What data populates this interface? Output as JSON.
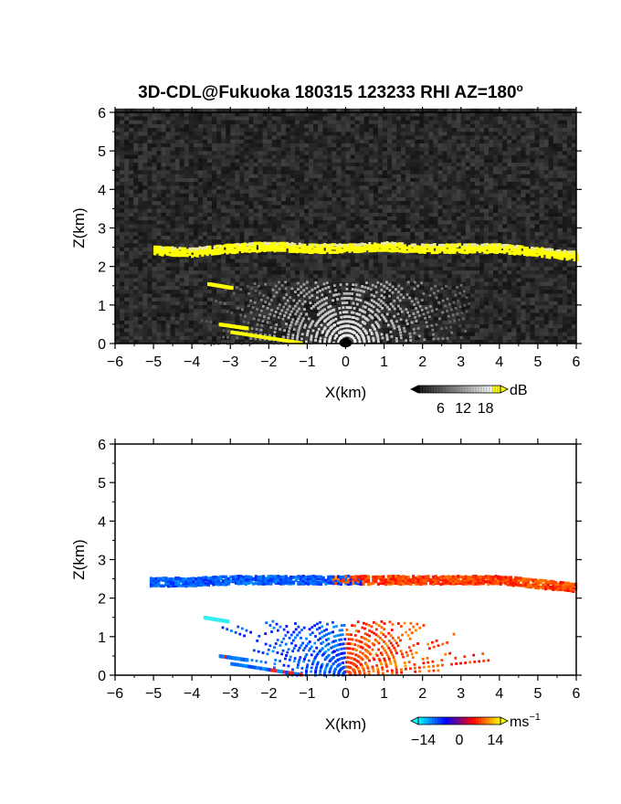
{
  "title": "3D-CDL@Fukuoka 180315 123233 RHI AZ=180",
  "title_degree": "o",
  "chart_data": [
    {
      "type": "heatmap",
      "quantity": "backscatter intensity",
      "xlabel": "X(km)",
      "ylabel": "Z(km)",
      "xlim": [
        -6,
        6
      ],
      "ylim": [
        0,
        6
      ],
      "xticks": [
        "-6",
        "-5",
        "-4",
        "-3",
        "-2",
        "-1",
        "0",
        "1",
        "2",
        "3",
        "4",
        "5",
        "6"
      ],
      "yticks": [
        "0",
        "1",
        "2",
        "3",
        "4",
        "5",
        "6"
      ],
      "background": "noise, dark gray",
      "features": [
        {
          "kind": "layer",
          "x_range": [
            -5.0,
            6.0
          ],
          "z_center": [
            2.4,
            2.35,
            2.45,
            2.5,
            2.45,
            2.45,
            2.5,
            2.45,
            2.45,
            2.45,
            2.35,
            2.25
          ],
          "x_nodes": [
            -5.0,
            -4.0,
            -3.0,
            -2.0,
            -1.0,
            0.0,
            1.0,
            2.0,
            3.0,
            4.0,
            5.0,
            6.0
          ],
          "level": "high"
        },
        {
          "kind": "near-field fan",
          "x_range": [
            -3.8,
            3.2
          ],
          "z_max": 1.6,
          "level": "medium"
        },
        {
          "kind": "streak",
          "from": [
            -3.6,
            1.55
          ],
          "to": [
            -3.0,
            1.45
          ],
          "level": "high"
        },
        {
          "kind": "streak",
          "from": [
            -3.3,
            0.5
          ],
          "to": [
            -2.6,
            0.4
          ],
          "level": "high"
        },
        {
          "kind": "streak",
          "from": [
            -3.0,
            0.3
          ],
          "to": [
            -1.2,
            0.02
          ],
          "level": "high"
        }
      ],
      "colorbar": {
        "unit": "dB",
        "ticks": [
          "6",
          "12",
          "18"
        ],
        "range": [
          0,
          22
        ],
        "colors": [
          "#000000",
          "#ffffff",
          "#ffff00"
        ]
      }
    },
    {
      "type": "heatmap",
      "quantity": "radial velocity",
      "xlabel": "X(km)",
      "ylabel": "Z(km)",
      "xlim": [
        -6,
        6
      ],
      "ylim": [
        0,
        6
      ],
      "xticks": [
        "-6",
        "-5",
        "-4",
        "-3",
        "-2",
        "-1",
        "0",
        "1",
        "2",
        "3",
        "4",
        "5",
        "6"
      ],
      "yticks": [
        "0",
        "1",
        "2",
        "3",
        "4",
        "5",
        "6"
      ],
      "features": [
        {
          "kind": "layer",
          "x_range": [
            -5.1,
            6.0
          ],
          "z_center": [
            2.4,
            2.4,
            2.45,
            2.45,
            2.45,
            2.45,
            2.45,
            2.45,
            2.45,
            2.45,
            2.35,
            2.25
          ],
          "x_nodes": [
            -5.0,
            -4.0,
            -3.0,
            -2.0,
            -1.0,
            0.0,
            1.0,
            2.0,
            3.0,
            4.0,
            5.0,
            6.0
          ],
          "velocity": {
            "x<0": -9,
            "x>0": 8
          }
        },
        {
          "kind": "near-field fan",
          "x_range": [
            -3.8,
            3.8
          ],
          "z_max": 1.4,
          "velocity": {
            "x<0": "-5 to -12",
            "x>0": "4 to 12"
          }
        },
        {
          "kind": "streak",
          "from": [
            -3.7,
            1.5
          ],
          "to": [
            -3.1,
            1.4
          ],
          "velocity": -14
        },
        {
          "kind": "streak",
          "from": [
            -3.3,
            0.5
          ],
          "to": [
            -2.6,
            0.4
          ],
          "velocity": -10
        },
        {
          "kind": "streak",
          "from": [
            -3.0,
            0.3
          ],
          "to": [
            -1.2,
            0.02
          ],
          "velocity": -10
        }
      ],
      "colorbar": {
        "unit": "ms",
        "unit_exponent": "-1",
        "ticks": [
          "-14",
          "0",
          "14"
        ],
        "range": [
          -16,
          16
        ],
        "colors": [
          "#00ffff",
          "#0000ff",
          "#ff0000",
          "#ffff00"
        ]
      }
    }
  ]
}
